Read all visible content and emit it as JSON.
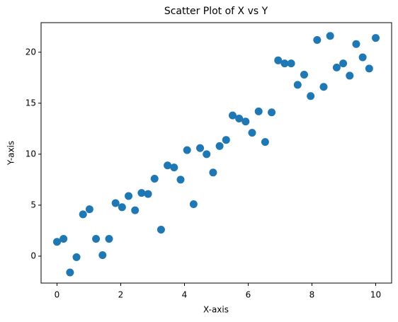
{
  "chart_data": {
    "type": "scatter",
    "title": "Scatter Plot of X vs Y",
    "x_label": "X-axis",
    "y_label": "Y-axis",
    "series": [
      {
        "color": "#1f77b4",
        "x": [
          0,
          0.204,
          0.408,
          0.612,
          0.816,
          1.02,
          1.224,
          1.429,
          1.633,
          1.837,
          2.041,
          2.245,
          2.449,
          2.653,
          2.857,
          3.061,
          3.265,
          3.469,
          3.673,
          3.878,
          4.082,
          4.286,
          4.49,
          4.694,
          4.898,
          5.102,
          5.306,
          5.51,
          5.714,
          5.918,
          6.122,
          6.327,
          6.531,
          6.735,
          6.939,
          7.143,
          7.347,
          7.551,
          7.755,
          7.959,
          8.163,
          8.367,
          8.571,
          8.776,
          8.98,
          9.184,
          9.388,
          9.592,
          9.796,
          10
        ],
        "values": [
          1.4,
          1.7,
          -1.6,
          -0.1,
          4.1,
          4.6,
          1.7,
          0.1,
          1.7,
          5.2,
          4.8,
          5.9,
          4.5,
          6.2,
          6.1,
          7.6,
          2.6,
          8.9,
          8.7,
          7.5,
          10.4,
          5.1,
          10.6,
          10.0,
          8.2,
          10.8,
          11.4,
          13.8,
          13.5,
          13.2,
          12.1,
          14.2,
          11.2,
          14.1,
          19.2,
          18.9,
          18.9,
          16.8,
          17.8,
          15.7,
          21.2,
          16.6,
          21.6,
          18.5,
          18.9,
          17.7,
          20.8,
          19.5,
          18.4,
          21.4
        ]
      }
    ],
    "xlim": [
      -0.5,
      10.5
    ],
    "ylim": [
      -2.64,
      22.9
    ],
    "xticks": [
      0,
      2,
      4,
      6,
      8,
      10
    ],
    "yticks": [
      0,
      5,
      10,
      15,
      20
    ],
    "grid": false
  }
}
